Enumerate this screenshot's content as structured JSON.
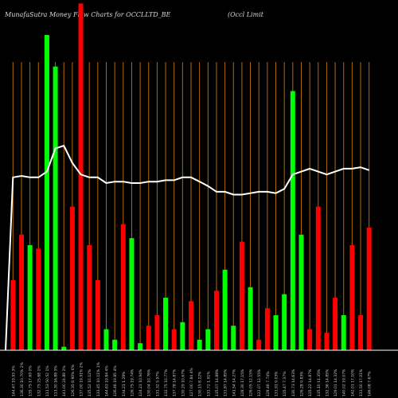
{
  "header": {
    "title": "MunafaSutra  Money Flow  Charts for OCCLLTD_BE",
    "subtitle": "(Occl Limit"
  },
  "chart_data": {
    "type": "bar",
    "ylim": [
      0,
      100
    ],
    "colors": {
      "up": "#00ff00",
      "down": "#ff0000",
      "grid": "#b36b00",
      "line": "#ffffff",
      "background": "#000000"
    },
    "categories": [
      "144.47 19.93 3%",
      "136.30 10.70% 2%",
      "135.75 17.69 0%",
      "132.75 25.68 1%",
      "111.53 50.52 1%",
      "113.30 16.88 3%",
      "141.00 24.89 2%",
      "126.35 8.90% 6%",
      "137.00 19.91% 2%",
      "135.52 10.12%",
      "133.45 10.11% 1%",
      "144.63 19.84 4%",
      "126.46 19.85 4%",
      "134.21 1.29%",
      "126.75 19.74%",
      "124.21 10.94%",
      "130.04 10.76%",
      "131.32 5.97%",
      "132.75 10.77%",
      "137.78 14.87%",
      "130.29 10.67%",
      "127.00 7.84 4%",
      "130.15 8.22%",
      "131.72 1.91%",
      "135.07 14.88%",
      "131.87 14.85%",
      "141.54 14.27%",
      "128.30 17.15%",
      "126.05 12.15%",
      "122.07 12.55%",
      "129.46 7.74%",
      "131.91 9.03%",
      "135.47 7.37%",
      "130.73 14.63%",
      "126.28 9.83%",
      "135.22 14.87%",
      "135.10 11.35%",
      "132.36 14.85%",
      "129.01 14.32%",
      "140.02 19.07%",
      "142.01 17.10%",
      "131.50 17.01%",
      "146.08 7.67%"
    ],
    "values": [
      20,
      33,
      30,
      29,
      90,
      81,
      1,
      41,
      99,
      30,
      20,
      6,
      3,
      36,
      32,
      2,
      7,
      10,
      15,
      6,
      8,
      14,
      3,
      6,
      17,
      23,
      7,
      31,
      18,
      3,
      12,
      10,
      16,
      74,
      33,
      6,
      41,
      5,
      15,
      10,
      30,
      10,
      35
    ],
    "directions": [
      "down",
      "down",
      "up",
      "down",
      "up",
      "up",
      "up",
      "down",
      "down",
      "down",
      "down",
      "up",
      "up",
      "down",
      "up",
      "up",
      "down",
      "down",
      "up",
      "down",
      "up",
      "down",
      "up",
      "up",
      "down",
      "up",
      "up",
      "down",
      "up",
      "down",
      "down",
      "up",
      "up",
      "up",
      "up",
      "down",
      "down",
      "down",
      "down",
      "up",
      "down",
      "down",
      "down"
    ],
    "line": [
      60,
      60.5,
      60,
      60,
      62,
      70,
      71,
      65,
      61,
      60,
      60,
      58,
      58.5,
      58.5,
      58,
      58,
      58.5,
      58.5,
      59,
      59,
      60,
      60,
      58.5,
      57,
      55,
      55,
      54,
      54,
      54.5,
      55,
      55,
      54.5,
      56,
      61,
      62,
      63,
      62,
      61,
      62,
      63,
      63,
      63.5,
      62.5
    ],
    "line_scale": [
      0,
      100
    ]
  }
}
